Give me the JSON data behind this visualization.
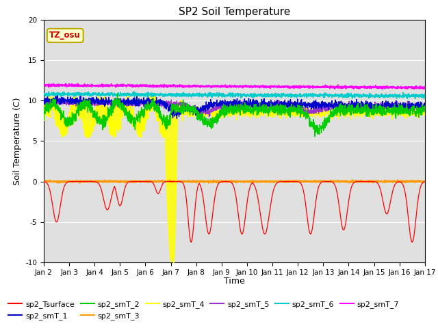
{
  "title": "SP2 Soil Temperature",
  "xlabel": "Time",
  "ylabel": "Soil Temperature (C)",
  "ylim": [
    -10,
    20
  ],
  "xlim": [
    0,
    15
  ],
  "xtick_labels": [
    "Jan 2",
    "Jan 3",
    "Jan 4",
    "Jan 5",
    "Jan 6",
    "Jan 7",
    "Jan 8",
    "Jan 9",
    "Jan 10",
    "Jan 11",
    "Jan 12",
    "Jan 13",
    "Jan 14",
    "Jan 15",
    "Jan 16",
    "Jan 17"
  ],
  "annotation_text": "TZ_osu",
  "annotation_color": "#cc0000",
  "annotation_bg": "#ffffcc",
  "annotation_border": "#bbaa00",
  "background_color": "#e0e0e0",
  "series_colors": {
    "sp2_Tsurface": "#ff0000",
    "sp2_smT_1": "#0000cc",
    "sp2_smT_2": "#00cc00",
    "sp2_smT_3": "#ff9900",
    "sp2_smT_4": "#ffff00",
    "sp2_smT_5": "#9933cc",
    "sp2_smT_6": "#00cccc",
    "sp2_smT_7": "#ff00ff"
  },
  "zero_line_color": "#ff9900",
  "title_fontsize": 11,
  "axis_label_fontsize": 9,
  "tick_fontsize": 7.5,
  "legend_fontsize": 8
}
